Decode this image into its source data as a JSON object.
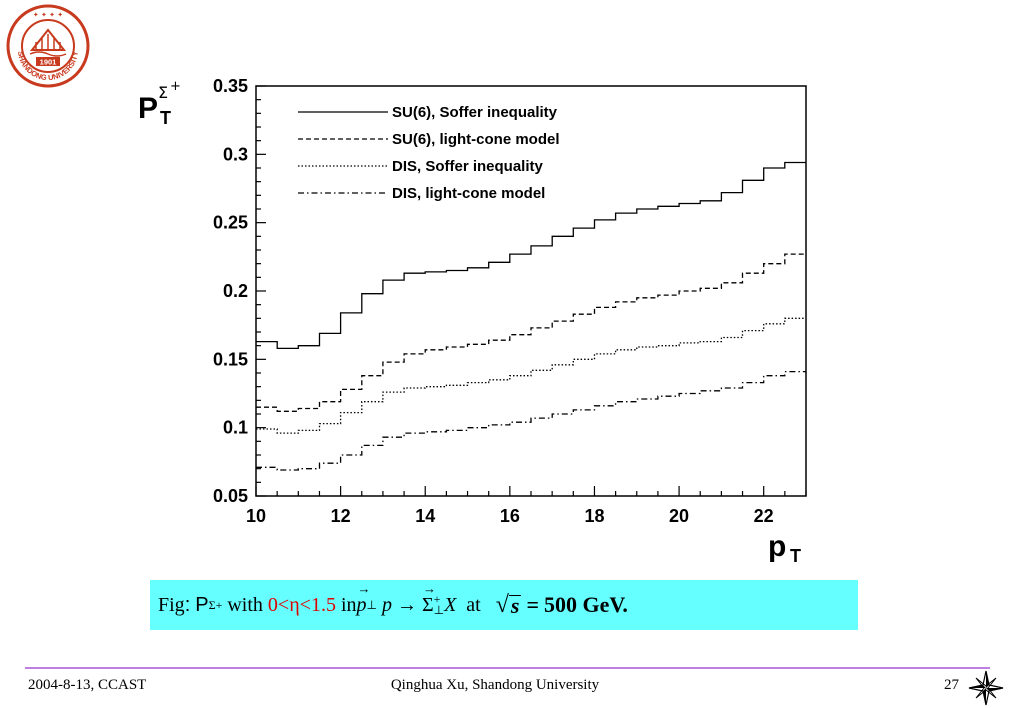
{
  "logo": {
    "text": "SHANDONG UNIVERSITY",
    "year": "1901"
  },
  "chart_data": {
    "type": "line",
    "xlabel": "p_T",
    "ylabel": "P_T^{Σ+}",
    "xlim": [
      10,
      23
    ],
    "ylim": [
      0.05,
      0.35
    ],
    "x_ticks": [
      "10",
      "12",
      "14",
      "16",
      "18",
      "20",
      "22"
    ],
    "y_ticks": [
      "0.05",
      "0.1",
      "0.15",
      "0.2",
      "0.25",
      "0.3",
      "0.35"
    ],
    "legend_position": "top-left",
    "grid": false,
    "x": [
      10,
      10.5,
      11,
      11.5,
      12,
      12.5,
      13,
      13.5,
      14,
      14.5,
      15,
      15.5,
      16,
      16.5,
      17,
      17.5,
      18,
      18.5,
      19,
      19.5,
      20,
      20.5,
      21,
      21.5,
      22,
      22.5
    ],
    "series": [
      {
        "name": "SU(6), Soffer inequality",
        "style": "solid",
        "values": [
          0.163,
          0.158,
          0.16,
          0.169,
          0.184,
          0.198,
          0.208,
          0.213,
          0.214,
          0.215,
          0.217,
          0.221,
          0.227,
          0.233,
          0.24,
          0.246,
          0.252,
          0.257,
          0.26,
          0.262,
          0.264,
          0.266,
          0.272,
          0.281,
          0.29,
          0.294
        ]
      },
      {
        "name": "SU(6), light-cone model",
        "style": "dashed",
        "values": [
          0.115,
          0.112,
          0.114,
          0.119,
          0.128,
          0.138,
          0.148,
          0.154,
          0.157,
          0.159,
          0.161,
          0.164,
          0.168,
          0.173,
          0.178,
          0.183,
          0.188,
          0.192,
          0.195,
          0.197,
          0.2,
          0.202,
          0.206,
          0.213,
          0.22,
          0.227
        ]
      },
      {
        "name": "DIS,  Soffer inequality",
        "style": "dotted",
        "values": [
          0.099,
          0.096,
          0.098,
          0.103,
          0.111,
          0.119,
          0.126,
          0.129,
          0.13,
          0.131,
          0.133,
          0.135,
          0.138,
          0.142,
          0.146,
          0.15,
          0.154,
          0.157,
          0.159,
          0.16,
          0.162,
          0.163,
          0.166,
          0.171,
          0.176,
          0.18
        ]
      },
      {
        "name": "DIS, light-cone model",
        "style": "dashdot",
        "values": [
          0.071,
          0.069,
          0.07,
          0.074,
          0.08,
          0.087,
          0.093,
          0.096,
          0.097,
          0.098,
          0.1,
          0.102,
          0.104,
          0.107,
          0.11,
          0.113,
          0.116,
          0.119,
          0.121,
          0.123,
          0.125,
          0.127,
          0.129,
          0.133,
          0.138,
          0.141
        ]
      }
    ]
  },
  "caption": {
    "fig": "Fig",
    "colon": ":",
    "P": "P",
    "P_sub": "Σ+",
    "with": "with",
    "eta_range": "0<η<1.5",
    "in": "in",
    "p_vec": "p",
    "perp": "⊥",
    "p": "p",
    "arrow": "→",
    "sigma": "Σ",
    "sigma_sup": "+",
    "sigma_sub": "⊥",
    "X": "X",
    "at": "at",
    "sqrt_sign": "√",
    "s": "s",
    "equals": "=",
    "energy": "500 GeV."
  },
  "footer": {
    "left": "2004-8-13,  CCAST",
    "center": "Qinghua Xu, Shandong University",
    "page": "27"
  },
  "colors": {
    "caption_bg": "#66ffff",
    "footer_rule": "#c07fe0",
    "red_text": "#e00000"
  }
}
